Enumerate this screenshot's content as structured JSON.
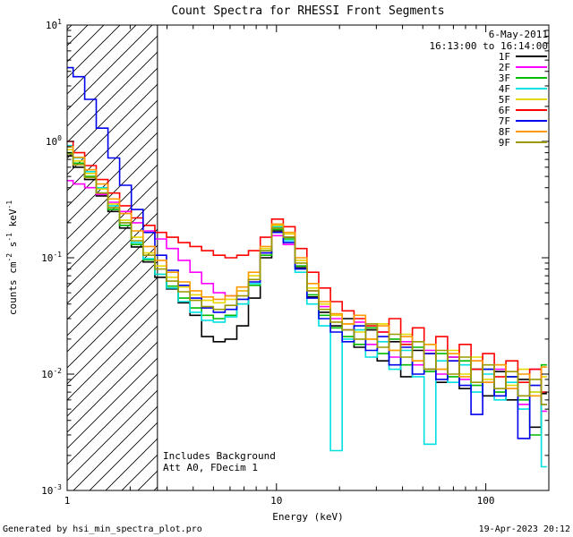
{
  "title": "Count Spectra for RHESSI Front Segments",
  "header": {
    "date": "6-May-2011",
    "time_range": "16:13:00 to 16:14:00"
  },
  "plot_annotations": {
    "line1": "Includes Background",
    "line2": "Att A0, FDecim 1"
  },
  "footer": {
    "generator": "Generated by hsi_min_spectra_plot.pro",
    "timestamp": "19-Apr-2023 20:12"
  },
  "axes": {
    "xlabel": "Energy (keV)",
    "ylabel_parts": {
      "p1": "counts cm",
      "s1": "-2",
      "p2": " s",
      "s2": "-1",
      "p3": " keV",
      "s3": "-1"
    },
    "x_ticks": [
      {
        "value": 1,
        "label": "1"
      },
      {
        "value": 10,
        "label": "10"
      },
      {
        "value": 100,
        "label": "100"
      }
    ],
    "y_tick_exponents": [
      1,
      0,
      -1,
      -2,
      -3
    ]
  },
  "chart_data": {
    "type": "line",
    "mode": "histogram-step",
    "title": "Count Spectra for RHESSI Front Segments",
    "xlabel": "Energy (keV)",
    "ylabel": "counts cm^-2 s^-1 keV^-1",
    "xscale": "log",
    "yscale": "log",
    "xlim": [
      1,
      200
    ],
    "ylim": [
      0.001,
      10
    ],
    "grid": false,
    "legend_position": "top-right",
    "excluded_region": {
      "xmin": 1.0,
      "xmax": 2.7,
      "style": "diagonal-hatch"
    },
    "x": [
      1.0,
      1.14,
      1.29,
      1.47,
      1.67,
      1.9,
      2.16,
      2.46,
      2.8,
      3.18,
      3.62,
      4.12,
      4.68,
      5.33,
      6.06,
      6.89,
      7.84,
      8.92,
      10.1,
      11.5,
      13.1,
      14.9,
      17.0,
      19.3,
      22.0,
      25.0,
      28.4,
      32.3,
      36.8,
      41.8,
      47.6,
      54.1,
      61.6,
      70.0,
      79.7,
      90.6,
      103,
      117,
      133,
      152,
      173,
      196
    ],
    "series": [
      {
        "name": "1F",
        "color": "#000000",
        "values": [
          0.75,
          0.6,
          0.47,
          0.34,
          0.25,
          0.18,
          0.124,
          0.092,
          0.068,
          0.054,
          0.041,
          0.032,
          0.021,
          0.019,
          0.02,
          0.026,
          0.045,
          0.1,
          0.17,
          0.15,
          0.082,
          0.046,
          0.034,
          0.026,
          0.03,
          0.017,
          0.024,
          0.013,
          0.019,
          0.0095,
          0.016,
          0.011,
          0.0085,
          0.014,
          0.0075,
          0.011,
          0.0065,
          0.0105,
          0.006,
          0.009,
          0.0035,
          0.0068
        ]
      },
      {
        "name": "2F",
        "color": "#ff00ff",
        "values": [
          0.46,
          0.43,
          0.4,
          0.35,
          0.3,
          0.25,
          0.2,
          0.17,
          0.145,
          0.12,
          0.095,
          0.075,
          0.06,
          0.05,
          0.047,
          0.052,
          0.065,
          0.11,
          0.155,
          0.13,
          0.085,
          0.052,
          0.038,
          0.03,
          0.024,
          0.028,
          0.018,
          0.023,
          0.014,
          0.019,
          0.012,
          0.016,
          0.01,
          0.014,
          0.009,
          0.013,
          0.0085,
          0.011,
          0.0075,
          0.0055,
          0.011,
          0.0048
        ]
      },
      {
        "name": "3F",
        "color": "#00bb00",
        "values": [
          0.8,
          0.65,
          0.5,
          0.36,
          0.26,
          0.19,
          0.13,
          0.096,
          0.072,
          0.057,
          0.045,
          0.037,
          0.032,
          0.03,
          0.032,
          0.04,
          0.058,
          0.105,
          0.175,
          0.145,
          0.085,
          0.048,
          0.032,
          0.025,
          0.021,
          0.018,
          0.025,
          0.015,
          0.02,
          0.012,
          0.017,
          0.0105,
          0.015,
          0.0095,
          0.013,
          0.008,
          0.011,
          0.007,
          0.0095,
          0.006,
          0.003,
          0.012
        ]
      },
      {
        "name": "4F",
        "color": "#00e0e0",
        "values": [
          0.92,
          0.72,
          0.55,
          0.4,
          0.28,
          0.2,
          0.135,
          0.098,
          0.072,
          0.055,
          0.042,
          0.034,
          0.029,
          0.028,
          0.031,
          0.04,
          0.06,
          0.115,
          0.185,
          0.14,
          0.075,
          0.04,
          0.026,
          0.0022,
          0.02,
          0.024,
          0.014,
          0.019,
          0.011,
          0.016,
          0.0095,
          0.0025,
          0.013,
          0.0085,
          0.012,
          0.007,
          0.01,
          0.006,
          0.0085,
          0.005,
          0.007,
          0.0016
        ]
      },
      {
        "name": "5F",
        "color": "#e6d800",
        "values": [
          0.85,
          0.68,
          0.53,
          0.39,
          0.29,
          0.21,
          0.15,
          0.11,
          0.085,
          0.068,
          0.056,
          0.048,
          0.043,
          0.041,
          0.044,
          0.052,
          0.07,
          0.12,
          0.19,
          0.16,
          0.095,
          0.055,
          0.04,
          0.032,
          0.027,
          0.023,
          0.02,
          0.027,
          0.016,
          0.022,
          0.013,
          0.018,
          0.011,
          0.016,
          0.01,
          0.014,
          0.009,
          0.012,
          0.008,
          0.011,
          0.007,
          0.0095
        ]
      },
      {
        "name": "6F",
        "color": "#ff0000",
        "values": [
          1.0,
          0.8,
          0.62,
          0.47,
          0.36,
          0.28,
          0.22,
          0.19,
          0.165,
          0.15,
          0.135,
          0.125,
          0.115,
          0.105,
          0.1,
          0.105,
          0.115,
          0.15,
          0.215,
          0.185,
          0.12,
          0.075,
          0.055,
          0.042,
          0.035,
          0.03,
          0.026,
          0.023,
          0.03,
          0.018,
          0.025,
          0.015,
          0.021,
          0.013,
          0.018,
          0.011,
          0.015,
          0.0095,
          0.013,
          0.0085,
          0.011,
          0.007
        ]
      },
      {
        "name": "7F",
        "color": "#0000ee",
        "values": [
          4.3,
          3.6,
          2.3,
          1.3,
          0.72,
          0.42,
          0.26,
          0.165,
          0.105,
          0.078,
          0.058,
          0.045,
          0.037,
          0.034,
          0.036,
          0.044,
          0.062,
          0.11,
          0.165,
          0.135,
          0.08,
          0.045,
          0.03,
          0.023,
          0.019,
          0.026,
          0.016,
          0.021,
          0.012,
          0.017,
          0.01,
          0.015,
          0.009,
          0.013,
          0.008,
          0.0045,
          0.011,
          0.0065,
          0.0095,
          0.0028,
          0.008,
          0.0055
        ]
      },
      {
        "name": "8F",
        "color": "#ff9900",
        "values": [
          0.9,
          0.73,
          0.57,
          0.43,
          0.32,
          0.24,
          0.17,
          0.125,
          0.095,
          0.075,
          0.062,
          0.052,
          0.046,
          0.044,
          0.047,
          0.056,
          0.075,
          0.125,
          0.195,
          0.165,
          0.1,
          0.06,
          0.042,
          0.033,
          0.027,
          0.032,
          0.02,
          0.026,
          0.016,
          0.021,
          0.013,
          0.018,
          0.011,
          0.015,
          0.0095,
          0.013,
          0.0085,
          0.012,
          0.0075,
          0.01,
          0.0065,
          0.0115
        ]
      },
      {
        "name": "9F",
        "color": "#9a9a00",
        "values": [
          0.78,
          0.63,
          0.49,
          0.36,
          0.27,
          0.2,
          0.14,
          0.105,
          0.08,
          0.063,
          0.051,
          0.043,
          0.038,
          0.036,
          0.039,
          0.047,
          0.065,
          0.115,
          0.18,
          0.15,
          0.09,
          0.052,
          0.036,
          0.028,
          0.024,
          0.02,
          0.027,
          0.017,
          0.022,
          0.014,
          0.019,
          0.011,
          0.016,
          0.01,
          0.014,
          0.0085,
          0.012,
          0.0075,
          0.0105,
          0.0065,
          0.009,
          0.0055
        ]
      }
    ]
  }
}
